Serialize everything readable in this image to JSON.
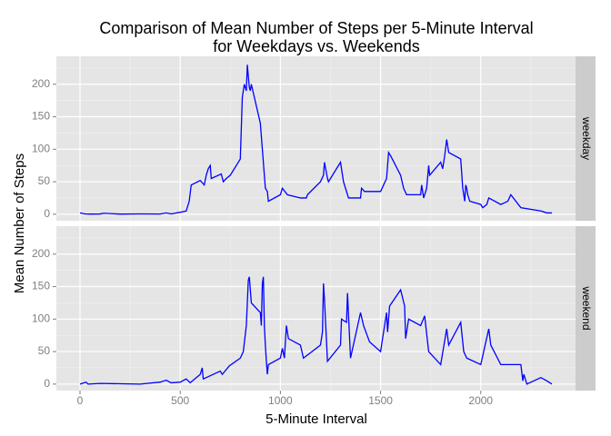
{
  "title": [
    "Comparison of Mean Number of Steps per 5-Minute Interval",
    "for Weekdays vs. Weekends"
  ],
  "x_label": "5-Minute Interval",
  "y_label": "Mean Number of Steps",
  "chart_data": [
    {
      "type": "line",
      "panel": "weekday",
      "x": [
        0,
        25,
        50,
        100,
        120,
        200,
        300,
        400,
        430,
        455,
        500,
        530,
        545,
        555,
        600,
        620,
        630,
        640,
        650,
        655,
        705,
        715,
        730,
        750,
        800,
        810,
        820,
        830,
        835,
        845,
        850,
        855,
        900,
        910,
        915,
        925,
        935,
        940,
        1000,
        1010,
        1035,
        1100,
        1130,
        1135,
        1200,
        1215,
        1220,
        1235,
        1240,
        1300,
        1315,
        1340,
        1400,
        1405,
        1420,
        1500,
        1530,
        1540,
        1550,
        1600,
        1615,
        1630,
        1700,
        1705,
        1715,
        1730,
        1740,
        1745,
        1800,
        1810,
        1820,
        1830,
        1840,
        1900,
        1910,
        1920,
        1925,
        1930,
        1935,
        1945,
        2000,
        2010,
        2030,
        2040,
        2100,
        2135,
        2150,
        2200,
        2300,
        2330,
        2355
      ],
      "series": [
        {
          "color": "#0000ff",
          "values": [
            2,
            0.5,
            0.2,
            0.4,
            1.5,
            0.2,
            0.5,
            0.3,
            2,
            0.5,
            3,
            5,
            20,
            45,
            52,
            45,
            60,
            70,
            75,
            55,
            62,
            50,
            55,
            60,
            85,
            180,
            200,
            190,
            230,
            195,
            190,
            200,
            140,
            100,
            80,
            40,
            35,
            20,
            30,
            40,
            30,
            25,
            25,
            30,
            50,
            60,
            80,
            55,
            50,
            80,
            50,
            25,
            25,
            40,
            35,
            35,
            55,
            95,
            90,
            60,
            40,
            30,
            30,
            45,
            25,
            40,
            75,
            60,
            80,
            70,
            90,
            115,
            95,
            85,
            40,
            20,
            45,
            40,
            30,
            20,
            15,
            10,
            15,
            25,
            15,
            20,
            30,
            10,
            5,
            2,
            2
          ]
        }
      ],
      "xlim": [
        -118,
        2473
      ],
      "ylim": [
        -10,
        243
      ],
      "xticks": [
        0,
        500,
        1000,
        1500,
        2000
      ],
      "xminor": [
        250,
        750,
        1250,
        1750,
        2250
      ],
      "yticks": [
        0,
        50,
        100,
        150,
        200
      ],
      "yminor": [
        25,
        75,
        125,
        175,
        225
      ]
    },
    {
      "type": "line",
      "panel": "weekend",
      "x": [
        0,
        30,
        40,
        100,
        300,
        400,
        430,
        455,
        500,
        530,
        550,
        600,
        610,
        615,
        630,
        700,
        710,
        745,
        800,
        815,
        830,
        835,
        840,
        845,
        850,
        855,
        900,
        905,
        910,
        915,
        920,
        925,
        930,
        935,
        940,
        1000,
        1010,
        1020,
        1030,
        1040,
        1100,
        1115,
        1200,
        1210,
        1215,
        1220,
        1235,
        1300,
        1305,
        1330,
        1335,
        1350,
        1400,
        1415,
        1445,
        1500,
        1520,
        1530,
        1535,
        1545,
        1600,
        1620,
        1625,
        1640,
        1700,
        1720,
        1740,
        1800,
        1830,
        1840,
        1900,
        1915,
        1930,
        2000,
        2040,
        2050,
        2100,
        2200,
        2210,
        2215,
        2230,
        2300,
        2330,
        2355
      ],
      "series": [
        {
          "color": "#0000ff",
          "values": [
            0,
            3,
            0,
            1,
            0,
            3,
            6,
            2,
            3,
            8,
            2,
            15,
            25,
            8,
            10,
            20,
            15,
            28,
            40,
            50,
            90,
            125,
            160,
            165,
            145,
            125,
            110,
            90,
            155,
            165,
            90,
            60,
            35,
            15,
            30,
            40,
            55,
            40,
            90,
            70,
            60,
            40,
            60,
            80,
            155,
            130,
            35,
            60,
            100,
            95,
            140,
            40,
            110,
            90,
            65,
            50,
            90,
            110,
            80,
            120,
            145,
            120,
            70,
            100,
            90,
            105,
            50,
            30,
            85,
            60,
            95,
            50,
            40,
            30,
            85,
            60,
            30,
            30,
            5,
            15,
            0,
            10,
            5,
            0
          ]
        }
      ],
      "xlim": [
        -118,
        2473
      ],
      "ylim": [
        -10,
        243
      ],
      "xticks": [
        0,
        500,
        1000,
        1500,
        2000
      ],
      "xminor": [
        250,
        750,
        1250,
        1750,
        2250
      ],
      "yticks": [
        0,
        50,
        100,
        150,
        200
      ],
      "yminor": [
        25,
        75,
        125,
        175,
        225
      ]
    }
  ]
}
